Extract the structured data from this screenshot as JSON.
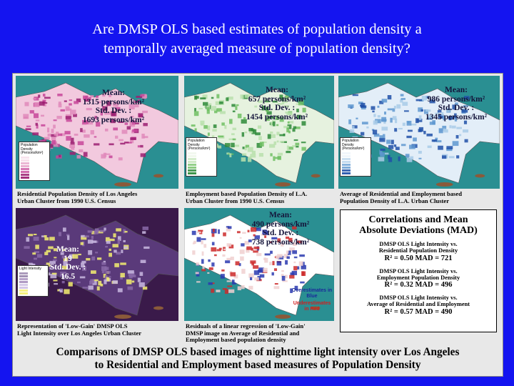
{
  "title_lines": [
    "Are DMSP OLS based estimates of population density a",
    "temporally averaged measure of population density?"
  ],
  "maps": [
    {
      "stats": [
        "Mean:",
        "1315 persons/km²",
        "Std. Dev. :",
        "1693 persons/km²"
      ],
      "legend_title": "Population Density (Persons/km²)",
      "caption": [
        "Residential Population Density of Los Angeles",
        "Urban Cluster from 1990 U.S. Census"
      ]
    },
    {
      "stats": [
        "Mean:",
        "657 persons/km²",
        "Std. Dev. :",
        "1454 persons/km²"
      ],
      "legend_title": "Population Density (Persons/km²)",
      "caption": [
        "Employment based Population Density of L.A.",
        "Urban Cluster from 1990 U.S. Census"
      ]
    },
    {
      "stats": [
        "Mean:",
        "986 persons/km²",
        "Std. Dev. :",
        "1345 persons/km²"
      ],
      "legend_title": "Population Density (Persons/km²)",
      "caption": [
        "Average of Residential and Employment based",
        "Population Density of L.A. Urban Cluster"
      ]
    },
    {
      "stats": [
        "Mean:",
        "19",
        "Std. Dev. :",
        "16.5"
      ],
      "legend_title": "Light Intensity",
      "caption": [
        "Representation of 'Low-Gain' DMSP OLS",
        "Light Intensity over Los Angeles Urban Cluster"
      ]
    },
    {
      "stats": [
        "Mean:",
        "490 persons/km²",
        "Std. Dev. :",
        "738 persons/km²"
      ],
      "annotations": [
        "Overestimates in Blue",
        "Underestimates in Red"
      ],
      "caption": [
        "Residuals of a linear regression of 'Low-Gain'",
        "DMSP image on Average of Residential and",
        "Employment based population density"
      ]
    }
  ],
  "correlations": {
    "title": [
      "Correlations and Mean",
      "Absolute Deviations (MAD)"
    ],
    "items": [
      {
        "label": [
          "DMSP OLS Light Intensity vs.",
          "Residential Population Density"
        ],
        "stats": "R² = 0.50    MAD = 721"
      },
      {
        "label": [
          "DMSP OLS Light Intensity vs.",
          "Employment Population Density"
        ],
        "stats": "R² = 0.32    MAD = 496"
      },
      {
        "label": [
          "DMSP OLS Light Intensity vs.",
          "Average of Residential and Employment"
        ],
        "stats": "R² = 0.57    MAD = 490"
      }
    ]
  },
  "footer": [
    "Comparisons of DMSP OLS based images of nighttime light intensity over Los Angeles",
    "to Residential and Employment based measures of Population Density"
  ]
}
